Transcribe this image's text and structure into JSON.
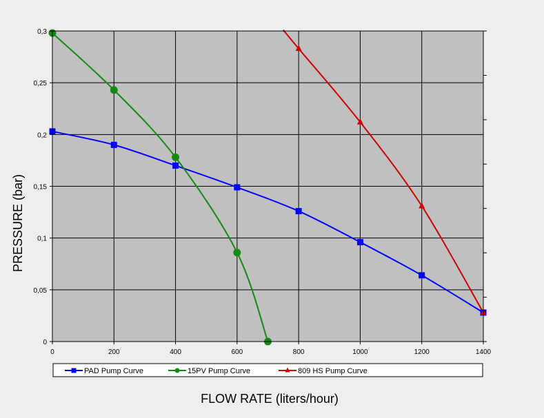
{
  "chart_data": {
    "type": "line",
    "title": "",
    "xlabel": "FLOW RATE (liters/hour)",
    "ylabel": "PRESSURE (bar)",
    "xlim": [
      0,
      1400
    ],
    "ylim": [
      0,
      0.3
    ],
    "x_ticks": [
      0,
      200,
      400,
      600,
      800,
      1000,
      1200,
      1400
    ],
    "x_tick_labels": [
      "0",
      "200",
      "400",
      "600",
      "800",
      "1000",
      "1200",
      "1400"
    ],
    "y_ticks": [
      0,
      0.05,
      0.1,
      0.15,
      0.2,
      0.25,
      0.3
    ],
    "y_tick_labels": [
      "0",
      "0,05",
      "0,1",
      "0,15",
      "0,2",
      "0,25",
      "0,3"
    ],
    "grid": true,
    "legend_position": "bottom",
    "plot_background": "#c0c0c0",
    "series": [
      {
        "name": "PAD Pump Curve",
        "color": "#0000ff",
        "marker": "square",
        "x": [
          0,
          200,
          400,
          600,
          800,
          1000,
          1200,
          1400
        ],
        "y": [
          0.203,
          0.19,
          0.17,
          0.149,
          0.126,
          0.096,
          0.064,
          0.028
        ]
      },
      {
        "name": "15PV Pump Curve",
        "color": "#138a13",
        "marker": "circle",
        "x": [
          0,
          200,
          400,
          600,
          700
        ],
        "y": [
          0.298,
          0.243,
          0.178,
          0.086,
          0.0
        ]
      },
      {
        "name": "809 HS Pump Curve",
        "color": "#cc0000",
        "marker": "triangle",
        "x": [
          750,
          800,
          1000,
          1200,
          1400
        ],
        "y": [
          0.301,
          0.283,
          0.212,
          0.131,
          0.028
        ],
        "marker_x": [
          800,
          1000,
          1200,
          1400
        ],
        "marker_y": [
          0.283,
          0.212,
          0.131,
          0.028
        ]
      }
    ]
  }
}
